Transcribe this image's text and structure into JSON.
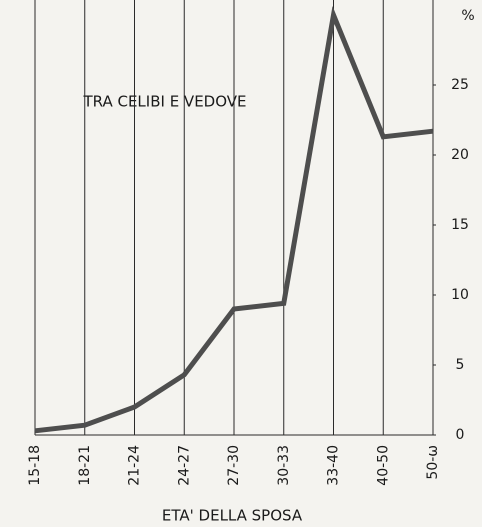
{
  "chart_data": {
    "type": "line",
    "annotation": "TRA CELIBI E VEDOVE",
    "xlabel": "ETA' DELLA SPOSA",
    "ylabel": "%",
    "categories": [
      "15-18",
      "18-21",
      "21-24",
      "24-27",
      "27-30",
      "30-33",
      "33-40",
      "40-50",
      "50-ω"
    ],
    "values": [
      0.3,
      0.7,
      2,
      4.3,
      9,
      9.4,
      30,
      21.3,
      21.7
    ],
    "color": "#4e4e4e",
    "ylim": [
      0,
      31
    ],
    "yticks": [
      0,
      5,
      10,
      15,
      20,
      25
    ],
    "grid": true
  }
}
